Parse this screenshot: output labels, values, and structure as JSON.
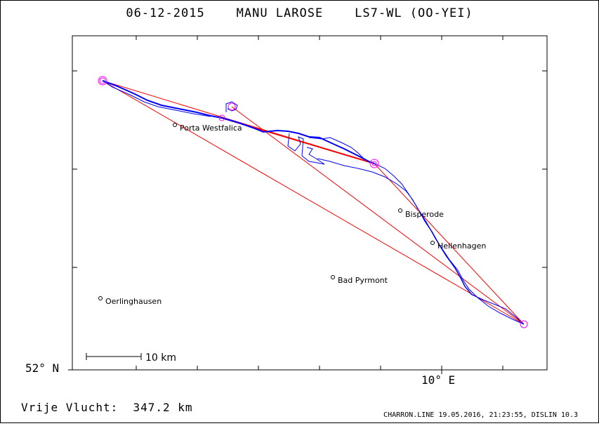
{
  "title": "06-12-2015    MANU LAROSE    LS7-WL (OO-YEI)",
  "axis": {
    "lat_label": "52° N",
    "lon_label": "10° E"
  },
  "distance_text": "Vrije Vlucht:  347.2 km",
  "credit": "CHARRON.LINE 19.05.2016, 21:23:55, DISLIN 10.3",
  "scale_bar_label": "10 km",
  "towns": [
    {
      "name": "Porta Westfalica"
    },
    {
      "name": "Bisperode"
    },
    {
      "name": "Hellenhagen"
    },
    {
      "name": "Bad Pyrmont"
    },
    {
      "name": "Oerlinghausen"
    }
  ],
  "colors": {
    "track": "#0000ff",
    "task": "#ff0000",
    "turnpoint": "#ff00ff",
    "frame": "#000000"
  },
  "icons": [
    "turnpoint-circle-icon",
    "town-circle-icon"
  ]
}
